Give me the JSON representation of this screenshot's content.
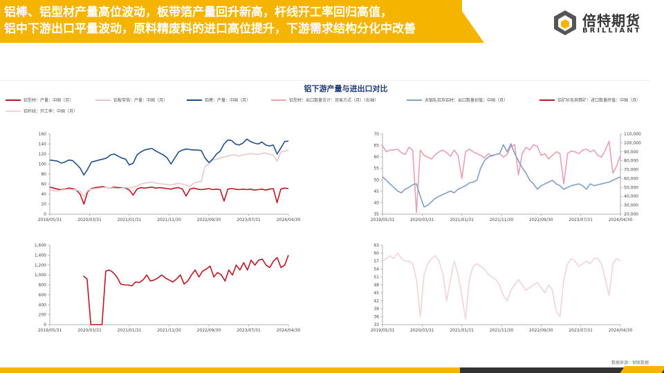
{
  "header": {
    "headline_line1": "铝棒、铝型材产量高位波动，板带箔产量回升新高，杆线开工率回归高值，",
    "headline_line2": "铝中下游出口平量波动，原料精废料的进口高位提升，下游需求结构分化中改善"
  },
  "logo": {
    "name_cn": "倍特期货",
    "name_en": "BRILLIANT"
  },
  "source": "数据来源：钢联数据",
  "colors": {
    "brand_yellow": "#f5b400",
    "dark_red": "#c0121f",
    "light_pink": "#e6c8cc",
    "navy": "#1f4e8c",
    "pink": "#e9a0ae",
    "steel_blue": "#7f9fc8",
    "rod_pink": "#f2d4d8"
  },
  "legend_items": [
    {
      "label": "铝型材：产量：中国（月）",
      "color": "#c0121f"
    },
    {
      "label": "铝板带箔：产量：中国（月）",
      "color": "#e6c8cc"
    },
    {
      "label": "铝棒：产量：中国（月）",
      "color": "#1f4e8c"
    },
    {
      "label": "铝型材：出口数量合计：贸易方式（月）（右轴）",
      "color": "#e9a0ae"
    },
    {
      "label": "未锻轧铝及铝材：出口数量初值：中国（月）",
      "color": "#7f9fc8"
    },
    {
      "label": "铝矿砂及其精矿：进口数量终值：中国（月）",
      "color": "#c0121f"
    },
    {
      "label": "铝杆线：开工率：中国（月）",
      "color": "#f2d4d8"
    }
  ],
  "chart_data": [
    {
      "type": "line",
      "title": "铝下游产量与进出口对比",
      "x_ticks": [
        "2019/05/31",
        "2020/03/31",
        "2021/01/31",
        "2021/11/30",
        "2022/09/30",
        "2023/07/31",
        "2024/04/30"
      ],
      "ylim": [
        0,
        160
      ],
      "y_ticks": [
        "160",
        "140",
        "120",
        "100",
        "80",
        "60",
        "40",
        "20",
        "0"
      ],
      "series": [
        {
          "name": "铝型材：产量：中国（月）",
          "color": "#c0121f",
          "values": [
            54,
            52,
            50,
            49,
            50,
            52,
            51,
            48,
            40,
            20,
            45,
            51,
            53,
            54,
            55,
            53,
            52,
            54,
            53,
            53,
            52,
            48,
            38,
            50,
            53,
            52,
            53,
            54,
            52,
            53,
            52,
            51,
            50,
            52,
            53,
            50,
            36,
            50,
            52,
            50,
            49,
            50,
            51,
            49,
            50,
            49,
            26,
            50,
            51,
            50,
            49,
            50,
            49,
            50,
            48,
            49,
            50,
            48,
            50,
            51,
            23,
            50,
            52,
            51
          ]
        },
        {
          "name": "铝板带箔：产量：中国（月）",
          "color": "#e6c8cc",
          "values": [
            48,
            47,
            46,
            48,
            49,
            50,
            49,
            48,
            46,
            35,
            47,
            50,
            51,
            52,
            53,
            53,
            52,
            52,
            51,
            52,
            53,
            52,
            54,
            56,
            60,
            62,
            63,
            64,
            62,
            61,
            60,
            59,
            58,
            60,
            62,
            60,
            58,
            55,
            62,
            64,
            65,
            96,
            100,
            108,
            110,
            112,
            114,
            116,
            118,
            118,
            116,
            118,
            120,
            121,
            120,
            119,
            121,
            122,
            120,
            118,
            106,
            124,
            126,
            128
          ]
        },
        {
          "name": "铝棒：产量：中国（月）",
          "color": "#1f4e8c",
          "values": [
            108,
            107,
            106,
            102,
            104,
            108,
            107,
            100,
            92,
            78,
            90,
            104,
            106,
            108,
            110,
            112,
            118,
            120,
            116,
            112,
            110,
            98,
            102,
            118,
            124,
            128,
            130,
            131,
            126,
            122,
            118,
            112,
            100,
            112,
            124,
            128,
            130,
            129,
            128,
            128,
            127,
            112,
            103,
            110,
            120,
            126,
            140,
            148,
            147,
            140,
            138,
            142,
            150,
            145,
            142,
            140,
            144,
            138,
            136,
            138,
            120,
            132,
            145,
            146
          ]
        }
      ]
    },
    {
      "type": "line",
      "x_ticks": [
        "2019/05/31",
        "2020/03/31",
        "2021/01/31",
        "2021/11/30",
        "2022/09/30",
        "2023/07/31",
        "2024/04/30"
      ],
      "ylim": [
        35,
        70
      ],
      "y_ticks": [
        "70",
        "65",
        "60",
        "55",
        "50",
        "45",
        "40",
        "35"
      ],
      "y2lim": [
        20000,
        110000
      ],
      "y2_ticks": [
        "110,000",
        "100,000",
        "90,000",
        "80,000",
        "70,000",
        "60,000",
        "50,000",
        "40,000",
        "30,000",
        "20,000"
      ],
      "series": [
        {
          "name": "铝型材：出口数量合计：贸易方式（月）（右轴）",
          "color": "#e9a0ae",
          "axis": "right",
          "values": [
            97000,
            90000,
            92000,
            92000,
            93000,
            89000,
            87000,
            95000,
            92000,
            22000,
            92000,
            86000,
            84000,
            82000,
            87000,
            90000,
            92000,
            89000,
            85000,
            92000,
            86000,
            60000,
            90000,
            93000,
            90000,
            88000,
            86000,
            83000,
            88000,
            85000,
            87000,
            88000,
            84000,
            87000,
            96000,
            98000,
            64000,
            88000,
            95000,
            92000,
            98000,
            96000,
            86000,
            88000,
            82000,
            86000,
            90000,
            88000,
            54000,
            88000,
            91000,
            90000,
            88000,
            92000,
            93000,
            90000,
            92000,
            86000,
            84000,
            92000,
            102000,
            66000,
            74000,
            86000
          ]
        },
        {
          "name": "未锻轧铝及铝材：出口数量初值：中国（月）",
          "color": "#7f9fc8",
          "axis": "right",
          "values": [
            62000,
            58000,
            54000,
            50000,
            46000,
            44000,
            48000,
            50000,
            53000,
            54000,
            40000,
            28000,
            30000,
            34000,
            38000,
            40000,
            42000,
            44000,
            46000,
            44000,
            48000,
            50000,
            52000,
            55000,
            56000,
            58000,
            72000,
            80000,
            84000,
            86000,
            87000,
            88000,
            98000,
            90000,
            99000,
            88000,
            80000,
            72000,
            66000,
            58000,
            54000,
            48000,
            52000,
            54000,
            56000,
            58000,
            54000,
            52000,
            48000,
            50000,
            52000,
            53000,
            54000,
            52000,
            48000,
            54000,
            52000,
            53000,
            54000,
            55000,
            56000,
            58000,
            60000,
            62000
          ]
        },
        {
          "name": "铝矿砂及其精矿：进口数量终值：中国（月）",
          "color": "#c0121f",
          "axis": "left",
          "values": []
        },
        {
          "name": "铝杆线：开工率：中国（月）",
          "color": "#f2d4d8",
          "axis": "left",
          "values": []
        }
      ]
    },
    {
      "type": "line",
      "x_ticks": [
        "2019/05/31",
        "2020/03/31",
        "2021/01/31",
        "2021/11/30",
        "2022/09/30",
        "2023/07/31",
        "2024/04/30"
      ],
      "ylim": [
        0,
        1600
      ],
      "y_ticks": [
        "1,600",
        "1,400",
        "1,200",
        "1,000",
        "800",
        "600",
        "400",
        "200",
        "0"
      ],
      "series": [
        {
          "name": "铝矿砂及其精矿：进口数量终值：中国（月）",
          "color": "#c0121f",
          "values": [
            null,
            null,
            null,
            null,
            null,
            null,
            null,
            null,
            null,
            980,
            920,
            0,
            0,
            0,
            0,
            1080,
            1100,
            1050,
            960,
            820,
            800,
            800,
            780,
            860,
            850,
            900,
            1000,
            880,
            900,
            940,
            1000,
            940,
            900,
            860,
            920,
            1000,
            820,
            880,
            1000,
            1100,
            960,
            1080,
            1120,
            1180,
            960,
            1050,
            1000,
            880,
            1100,
            1000,
            1200,
            1100,
            1250,
            1100,
            1300,
            1200,
            1300,
            1320,
            1200,
            1150,
            1280,
            1350,
            1150,
            1200,
            1400
          ]
        }
      ]
    },
    {
      "type": "line",
      "x_ticks": [
        "2019/05/31",
        "2020/03/31",
        "2021/01/31",
        "2021/11/30",
        "2022/09/30",
        "2023/07/31",
        "2024/04/30"
      ],
      "ylim": [
        33,
        63
      ],
      "y_ticks": [
        "63",
        "60",
        "57",
        "54",
        "51",
        "48",
        "45",
        "42",
        "39",
        "36",
        "33"
      ],
      "series": [
        {
          "name": "铝杆线：开工率：中国（月）",
          "color": "#f2d4d8",
          "values": [
            57,
            58,
            59,
            58,
            60,
            58,
            57,
            57,
            56,
            50,
            36,
            52,
            56,
            58,
            59,
            57,
            52,
            42,
            50,
            57,
            52,
            44,
            35,
            50,
            55,
            56,
            55,
            54,
            52,
            51,
            50,
            48,
            44,
            42,
            46,
            48,
            50,
            48,
            46,
            47,
            48,
            49,
            47,
            45,
            48,
            46,
            38,
            36,
            50,
            56,
            58,
            57,
            55,
            56,
            57,
            56,
            58,
            58,
            56,
            50,
            44,
            56,
            58,
            57
          ]
        }
      ]
    }
  ]
}
